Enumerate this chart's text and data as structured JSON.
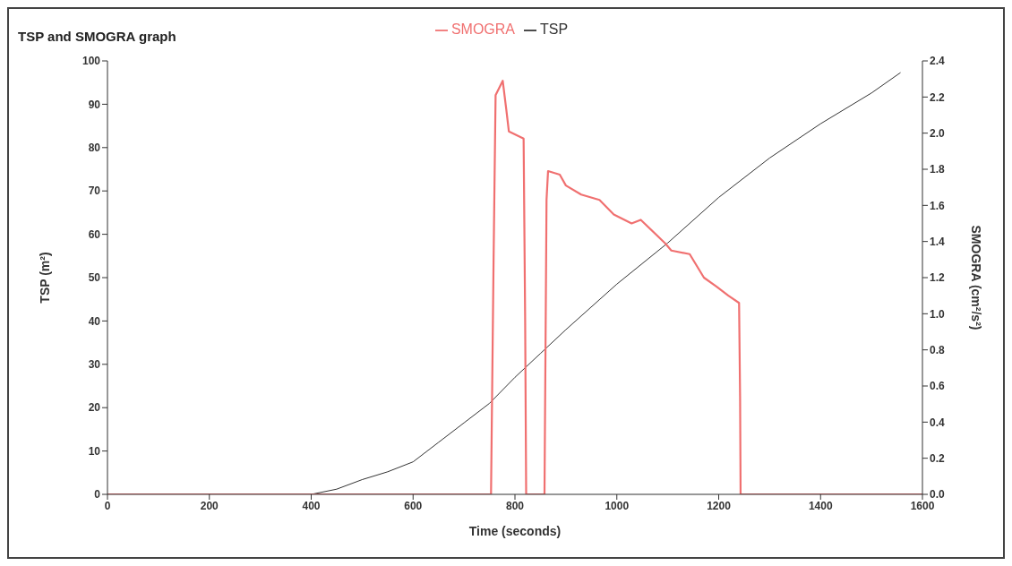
{
  "chart_data": {
    "type": "line",
    "title": "TSP and SMOGRA graph",
    "xlabel": "Time (seconds)",
    "ylabel": "TSP (m²)",
    "y2label": "SMOGRA (cm²/s²)",
    "series": [
      {
        "name": "TSP",
        "color": "#333333",
        "x": [
          0,
          400,
          450,
          500,
          550,
          600,
          650,
          700,
          750,
          800,
          850,
          900,
          1000,
          1100,
          1200,
          1300,
          1400,
          1500,
          1557
        ],
        "values": [
          0,
          0,
          1.2,
          3.4,
          5.2,
          7.5,
          12,
          16.5,
          21,
          27,
          32.5,
          38,
          48.5,
          58,
          68.5,
          77.6,
          85.5,
          92.6,
          97.3
        ]
      },
      {
        "name": "SMOGRA",
        "color": "#f07070",
        "axis": "y2",
        "x": [
          0,
          753,
          758,
          762,
          776,
          783,
          788,
          817,
          820,
          822,
          858,
          862,
          865,
          888,
          900,
          930,
          966,
          994,
          1029,
          1047,
          1095,
          1107,
          1143,
          1171,
          1196,
          1219,
          1240,
          1242,
          1243,
          1600
        ],
        "values": [
          0,
          0,
          1.29,
          2.21,
          2.29,
          2.13,
          2.01,
          1.97,
          0.97,
          0,
          0,
          1.63,
          1.79,
          1.77,
          1.71,
          1.66,
          1.63,
          1.55,
          1.5,
          1.52,
          1.39,
          1.35,
          1.33,
          1.2,
          1.15,
          1.1,
          1.06,
          0.54,
          0,
          0
        ]
      }
    ],
    "xlim": [
      0,
      1600
    ],
    "xticks": [
      0,
      200,
      400,
      600,
      800,
      1000,
      1200,
      1400,
      1600
    ],
    "ylim": [
      0,
      100
    ],
    "yticks": [
      0,
      10,
      20,
      30,
      40,
      50,
      60,
      70,
      80,
      90,
      100
    ],
    "y2lim": [
      0,
      2.4
    ],
    "y2ticks": [
      {
        "value": 0,
        "label": "0.0"
      },
      {
        "value": 0.2,
        "label": "0.2"
      },
      {
        "value": 0.4,
        "label": "0.4"
      },
      {
        "value": 0.6,
        "label": "0.6"
      },
      {
        "value": 0.8,
        "label": "0.8"
      },
      {
        "value": 1,
        "label": "1.0"
      },
      {
        "value": 1.2,
        "label": "1.2"
      },
      {
        "value": 1.4,
        "label": "1.4"
      },
      {
        "value": 1.6,
        "label": "1.6"
      },
      {
        "value": 1.8,
        "label": "1.8"
      },
      {
        "value": 2,
        "label": "2.0"
      },
      {
        "value": 2.2,
        "label": "2.2"
      },
      {
        "value": 2.4,
        "label": "2.4"
      }
    ],
    "grid": false,
    "legend": "top",
    "marker": "none",
    "line_style": "solid"
  }
}
